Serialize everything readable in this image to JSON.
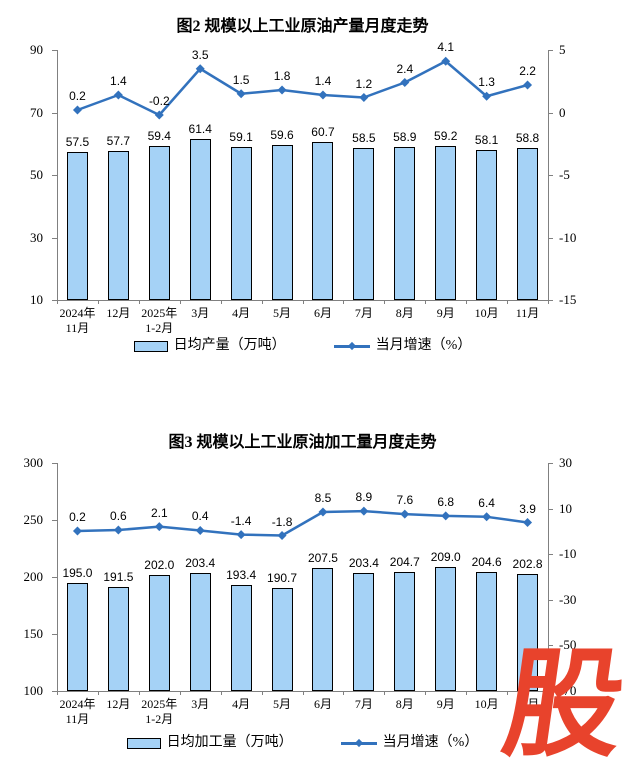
{
  "page": {
    "background": "#ffffff"
  },
  "watermark": {
    "text": "股",
    "color": "#e8432c"
  },
  "colors": {
    "bar_fill": "#a5d2f6",
    "bar_border": "#000000",
    "line": "#3272bd",
    "axis": "#808080",
    "text": "#000000"
  },
  "chart_data": [
    {
      "type": "bar+line",
      "title": "图2 规模以上工业原油产量月度走势",
      "legend_position": "bottom",
      "grid": false,
      "categories": [
        [
          "2024年",
          "11月"
        ],
        [
          "12月"
        ],
        [
          "2025年",
          "1-2月"
        ],
        [
          "3月"
        ],
        [
          "4月"
        ],
        [
          "5月"
        ],
        [
          "6月"
        ],
        [
          "7月"
        ],
        [
          "8月"
        ],
        [
          "9月"
        ],
        [
          "10月"
        ],
        [
          "11月"
        ]
      ],
      "left_axis": {
        "min": 10,
        "max": 90,
        "ticks": [
          90,
          70,
          50,
          30,
          10
        ]
      },
      "right_axis": {
        "min": -15,
        "max": 5,
        "ticks": [
          5,
          0,
          -5,
          -10,
          -15
        ]
      },
      "series": [
        {
          "name": "日均产量（万吨）",
          "type": "bar",
          "axis": "left",
          "values": [
            57.5,
            57.7,
            59.4,
            61.4,
            59.1,
            59.6,
            60.7,
            58.5,
            58.9,
            59.2,
            58.1,
            58.8
          ],
          "labels": [
            "57.5",
            "57.7",
            "59.4",
            "61.4",
            "59.1",
            "59.6",
            "60.7",
            "58.5",
            "58.9",
            "59.2",
            "58.1",
            "58.8"
          ]
        },
        {
          "name": "当月增速（%）",
          "type": "line",
          "axis": "right",
          "values": [
            0.2,
            1.4,
            -0.2,
            3.5,
            1.5,
            1.8,
            1.4,
            1.2,
            2.4,
            4.1,
            1.3,
            2.2
          ],
          "labels": [
            "0.2",
            "1.4",
            "-0.2",
            "3.5",
            "1.5",
            "1.8",
            "1.4",
            "1.2",
            "2.4",
            "4.1",
            "1.3",
            "2.2"
          ]
        }
      ]
    },
    {
      "type": "bar+line",
      "title": "图3 规模以上工业原油加工量月度走势",
      "legend_position": "bottom",
      "grid": false,
      "categories": [
        [
          "2024年",
          "11月"
        ],
        [
          "12月"
        ],
        [
          "2025年",
          "1-2月"
        ],
        [
          "3月"
        ],
        [
          "4月"
        ],
        [
          "5月"
        ],
        [
          "6月"
        ],
        [
          "7月"
        ],
        [
          "8月"
        ],
        [
          "9月"
        ],
        [
          "10月"
        ],
        [
          "11月"
        ]
      ],
      "left_axis": {
        "min": 100,
        "max": 300,
        "ticks": [
          300,
          250,
          200,
          150,
          100
        ]
      },
      "right_axis": {
        "min": -70,
        "max": 30,
        "ticks": [
          30,
          10,
          -10,
          -30,
          -50,
          -70
        ]
      },
      "series": [
        {
          "name": "日均加工量（万吨）",
          "type": "bar",
          "axis": "left",
          "values": [
            195.0,
            191.5,
            202.0,
            203.4,
            193.4,
            190.7,
            207.5,
            203.4,
            204.7,
            209.0,
            204.6,
            202.8
          ],
          "labels": [
            "195.0",
            "191.5",
            "202.0",
            "203.4",
            "193.4",
            "190.7",
            "207.5",
            "203.4",
            "204.7",
            "209.0",
            "204.6",
            "202.8"
          ]
        },
        {
          "name": "当月增速（%）",
          "type": "line",
          "axis": "right",
          "values": [
            0.2,
            0.6,
            2.1,
            0.4,
            -1.4,
            -1.8,
            8.5,
            8.9,
            7.6,
            6.8,
            6.4,
            3.9
          ],
          "labels": [
            "0.2",
            "0.6",
            "2.1",
            "0.4",
            "-1.4",
            "-1.8",
            "8.5",
            "8.9",
            "7.6",
            "6.8",
            "6.4",
            "3.9"
          ]
        }
      ]
    }
  ]
}
